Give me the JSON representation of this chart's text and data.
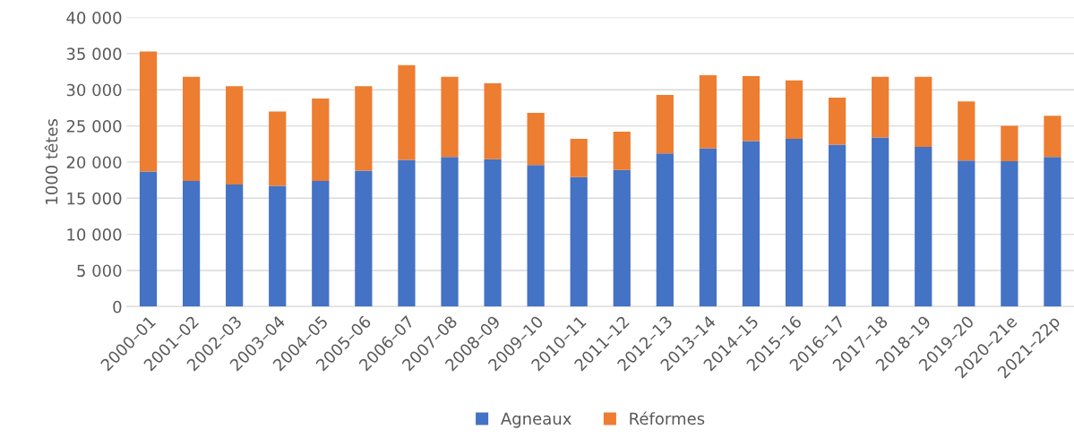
{
  "chart_data": {
    "type": "bar",
    "stacked": true,
    "ylabel": "1000 têtes",
    "categories": [
      "2000–01",
      "2001–02",
      "2002–03",
      "2003–04",
      "2004–05",
      "2005–06",
      "2006–07",
      "2007–08",
      "2008–09",
      "2009–10",
      "2010–11",
      "2011–12",
      "2012–13",
      "2013–14",
      "2014–15",
      "2015–16",
      "2016–17",
      "2017–18",
      "2018–19",
      "2019–20",
      "2020–21e",
      "2021–22p"
    ],
    "series": [
      {
        "name": "Agneaux",
        "color": "#4472c4",
        "values": [
          18700,
          17400,
          16900,
          16700,
          17400,
          18800,
          20300,
          20700,
          20400,
          19600,
          17900,
          18900,
          21200,
          21900,
          22900,
          23200,
          22400,
          23400,
          22100,
          20200,
          20100,
          20700
        ]
      },
      {
        "name": "Réformes",
        "color": "#ed7d31",
        "values": [
          16600,
          14400,
          13600,
          10300,
          11400,
          11700,
          13100,
          11100,
          10500,
          7200,
          5300,
          5300,
          8100,
          10100,
          9000,
          8100,
          6500,
          8400,
          9700,
          8200,
          4900,
          5700
        ]
      }
    ],
    "ylim": [
      0,
      40000
    ],
    "yticks": [
      {
        "value": 0,
        "label": "0"
      },
      {
        "value": 5000,
        "label": "5 000"
      },
      {
        "value": 10000,
        "label": "10 000"
      },
      {
        "value": 15000,
        "label": "15 000"
      },
      {
        "value": 20000,
        "label": "20 000"
      },
      {
        "value": 25000,
        "label": "25 000"
      },
      {
        "value": 30000,
        "label": "30 000"
      },
      {
        "value": 35000,
        "label": "35 000"
      },
      {
        "value": 40000,
        "label": "40 000"
      }
    ],
    "grid": "y",
    "legend": "bottom"
  }
}
